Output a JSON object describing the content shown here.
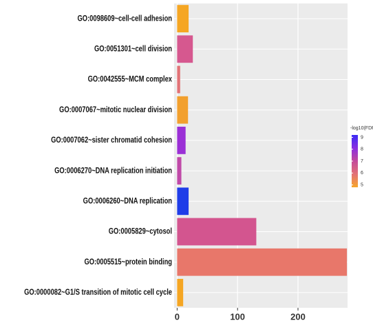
{
  "chart_data": {
    "type": "barh",
    "categories": [
      "GO:0098609~cell-cell adhesion",
      "GO:0051301~cell division",
      "GO:0042555~MCM complex",
      "GO:0007067~mitotic nuclear division",
      "GO:0007062~sister chromatid cohesion",
      "GO:0006270~DNA replication initiation",
      "GO:0006260~DNA replication",
      "GO:0005829~cytosol",
      "GO:0005515~protein binding",
      "GO:0000082~G1/S transition of mitotic cell cycle"
    ],
    "values": [
      19,
      26,
      5,
      18,
      14,
      7,
      19,
      131,
      281,
      10
    ],
    "colors": [
      "#f5a623",
      "#d6588f",
      "#e27276",
      "#f2a02e",
      "#9b30d6",
      "#c04aa8",
      "#1f3de8",
      "#d3558f",
      "#e8776a",
      "#f5a623"
    ],
    "xlim": [
      -5,
      282
    ],
    "xticks": [
      0,
      100,
      200
    ],
    "grid": true,
    "legend_title": "-log10(FDR)",
    "color_lim": [
      4.8,
      9.2
    ],
    "color_ticks": [
      5,
      6,
      7,
      8,
      9
    ],
    "color_stops": [
      "#f7a62a",
      "#e27276",
      "#c44a9a",
      "#8a2ee0",
      "#3b2cf5"
    ]
  }
}
